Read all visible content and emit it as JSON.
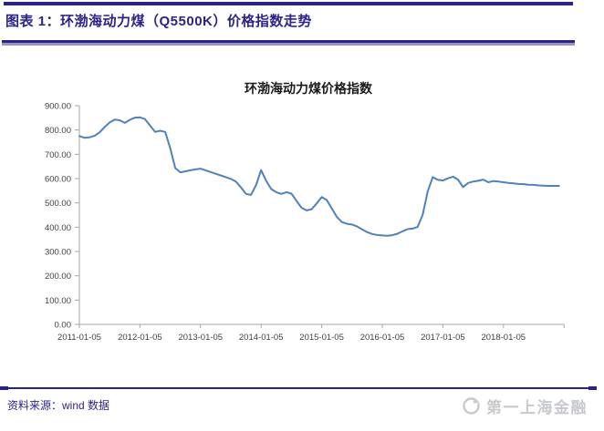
{
  "header": {
    "title": "图表 1：环渤海动力煤（Q5500K）价格指数走势"
  },
  "footer": {
    "source_label": "资料来源：wind 数据",
    "brand": "第一上海金融"
  },
  "colors": {
    "navy": "#2B2487",
    "separator_light": "#9693CB",
    "line": "#4F81BD",
    "axis": "#A6A6A6",
    "tick_text": "#3F3F3F",
    "title_text": "#1A1A1A",
    "brand_gray": "#C6C9CE"
  },
  "chart_data": {
    "type": "line",
    "title": "环渤海动力煤价格指数",
    "xlabel": "",
    "ylabel": "",
    "ylim": [
      0,
      900
    ],
    "y_tick_step": 100,
    "grid": false,
    "legend_position": "none",
    "x_tick_labels": [
      "2011-01-05",
      "2012-01-05",
      "2013-01-05",
      "2014-01-05",
      "2015-01-05",
      "2016-01-05",
      "2017-01-05",
      "2018-01-05"
    ],
    "series": [
      {
        "name": "环渤海动力煤价格指数",
        "x": [
          "2011-01",
          "2011-02",
          "2011-03",
          "2011-04",
          "2011-05",
          "2011-06",
          "2011-07",
          "2011-08",
          "2011-09",
          "2011-10",
          "2011-11",
          "2011-12",
          "2012-01",
          "2012-02",
          "2012-03",
          "2012-04",
          "2012-05",
          "2012-06",
          "2012-07",
          "2012-08",
          "2012-09",
          "2012-10",
          "2012-11",
          "2012-12",
          "2013-01",
          "2013-02",
          "2013-03",
          "2013-04",
          "2013-05",
          "2013-06",
          "2013-07",
          "2013-08",
          "2013-09",
          "2013-10",
          "2013-11",
          "2013-12",
          "2014-01",
          "2014-02",
          "2014-03",
          "2014-04",
          "2014-05",
          "2014-06",
          "2014-07",
          "2014-08",
          "2014-09",
          "2014-10",
          "2014-11",
          "2014-12",
          "2015-01",
          "2015-02",
          "2015-03",
          "2015-04",
          "2015-05",
          "2015-06",
          "2015-07",
          "2015-08",
          "2015-09",
          "2015-10",
          "2015-11",
          "2015-12",
          "2016-01",
          "2016-02",
          "2016-03",
          "2016-04",
          "2016-05",
          "2016-06",
          "2016-07",
          "2016-08",
          "2016-09",
          "2016-10",
          "2016-11",
          "2016-12",
          "2017-01",
          "2017-02",
          "2017-03",
          "2017-04",
          "2017-05",
          "2017-06",
          "2017-07",
          "2017-08",
          "2017-09",
          "2017-10",
          "2017-11",
          "2017-12",
          "2018-01",
          "2018-02",
          "2018-03",
          "2018-04",
          "2018-05",
          "2018-06",
          "2018-07",
          "2018-08",
          "2018-09",
          "2018-10",
          "2018-11",
          "2018-12"
        ],
        "values": [
          775,
          768,
          770,
          776,
          790,
          812,
          831,
          843,
          840,
          829,
          842,
          851,
          852,
          845,
          818,
          792,
          797,
          792,
          725,
          643,
          626,
          630,
          634,
          638,
          641,
          634,
          627,
          620,
          613,
          606,
          599,
          588,
          564,
          537,
          533,
          574,
          635,
          591,
          557,
          544,
          537,
          544,
          538,
          509,
          480,
          469,
          474,
          498,
          524,
          512,
          477,
          442,
          421,
          414,
          411,
          403,
          391,
          380,
          372,
          368,
          366,
          365,
          367,
          373,
          383,
          392,
          394,
          401,
          452,
          548,
          606,
          595,
          592,
          601,
          608,
          596,
          565,
          582,
          588,
          591,
          596,
          585,
          590,
          588,
          585,
          582,
          580,
          578,
          577,
          575,
          574,
          572,
          571,
          570,
          570,
          570
        ]
      }
    ]
  }
}
